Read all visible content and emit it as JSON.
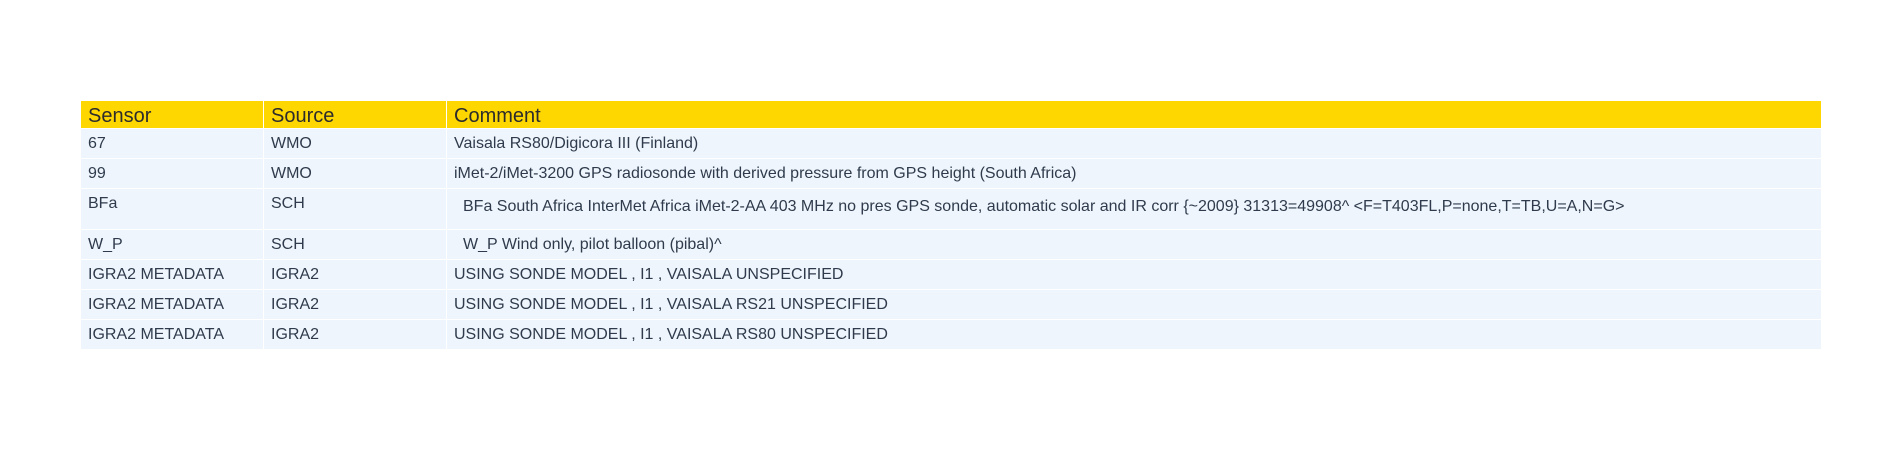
{
  "table": {
    "headers": [
      "Sensor",
      "Source",
      "Comment"
    ],
    "rows": [
      {
        "sensor": "67",
        "source": "WMO",
        "comment": "Vaisala RS80/Digicora III (Finland)"
      },
      {
        "sensor": "99",
        "source": "WMO",
        "comment": "iMet-2/iMet-3200 GPS radiosonde with derived pressure from GPS height (South Africa)"
      },
      {
        "sensor": "BFa",
        "source": "SCH",
        "comment": "BFa South Africa InterMet Africa iMet-2-AA 403 MHz no pres GPS sonde, automatic solar and IR corr {~2009} 31313=49908^ <F=T403FL,P=none,T=TB,U=A,N=G>"
      },
      {
        "sensor": "W_P",
        "source": "SCH",
        "comment": "W_P Wind only, pilot balloon (pibal)^"
      },
      {
        "sensor": "IGRA2 METADATA",
        "source": "IGRA2",
        "comment": "USING SONDE MODEL , I1 , VAISALA UNSPECIFIED"
      },
      {
        "sensor": "IGRA2 METADATA",
        "source": "IGRA2",
        "comment": "USING SONDE MODEL , I1 , VAISALA RS21 UNSPECIFIED"
      },
      {
        "sensor": "IGRA2 METADATA",
        "source": "IGRA2",
        "comment": "USING SONDE MODEL , I1 , VAISALA RS80 UNSPECIFIED"
      }
    ]
  },
  "colors": {
    "header_bg": "#FFD700",
    "row_bg": "#EEF5FC",
    "text": "#2f3b4c"
  }
}
